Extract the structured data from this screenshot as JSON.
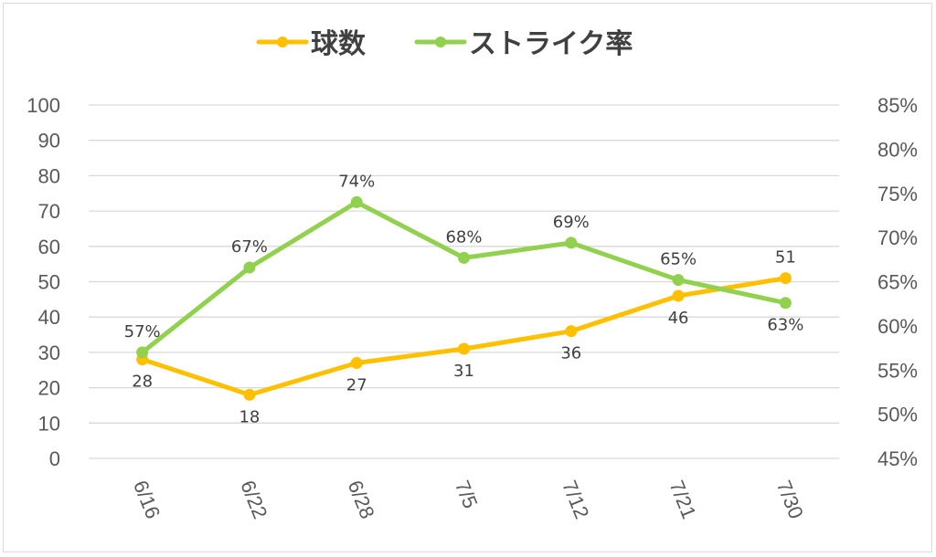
{
  "chart_data": {
    "type": "line",
    "title": "",
    "categories": [
      "6/16",
      "6/22",
      "6/28",
      "7/5",
      "7/12",
      "7/21",
      "7/30"
    ],
    "legend_position": "top",
    "grid": true,
    "y_left": {
      "ylim": [
        0,
        100
      ],
      "ticks": [
        "0",
        "10",
        "20",
        "30",
        "40",
        "50",
        "60",
        "70",
        "80",
        "90",
        "100"
      ]
    },
    "y_right": {
      "ylim": [
        0.45,
        0.85
      ],
      "ticks": [
        "45%",
        "50%",
        "55%",
        "60%",
        "65%",
        "70%",
        "75%",
        "80%",
        "85%"
      ]
    },
    "series": [
      {
        "name": "球数",
        "axis": "left",
        "color": "#FFC000",
        "values": [
          28,
          18,
          27,
          31,
          36,
          46,
          51
        ],
        "labels": [
          "28",
          "18",
          "27",
          "31",
          "36",
          "46",
          "51"
        ],
        "label_side": [
          "below",
          "below",
          "below",
          "below",
          "below",
          "below",
          "above"
        ]
      },
      {
        "name": "ストライク率",
        "axis": "right",
        "color": "#92D050",
        "values": [
          0.57,
          0.666,
          0.74,
          0.677,
          0.694,
          0.652,
          0.626
        ],
        "labels": [
          "57%",
          "67%",
          "74%",
          "68%",
          "69%",
          "65%",
          "63%"
        ],
        "label_side": [
          "above",
          "above",
          "above",
          "above",
          "above",
          "above",
          "below"
        ]
      }
    ]
  }
}
